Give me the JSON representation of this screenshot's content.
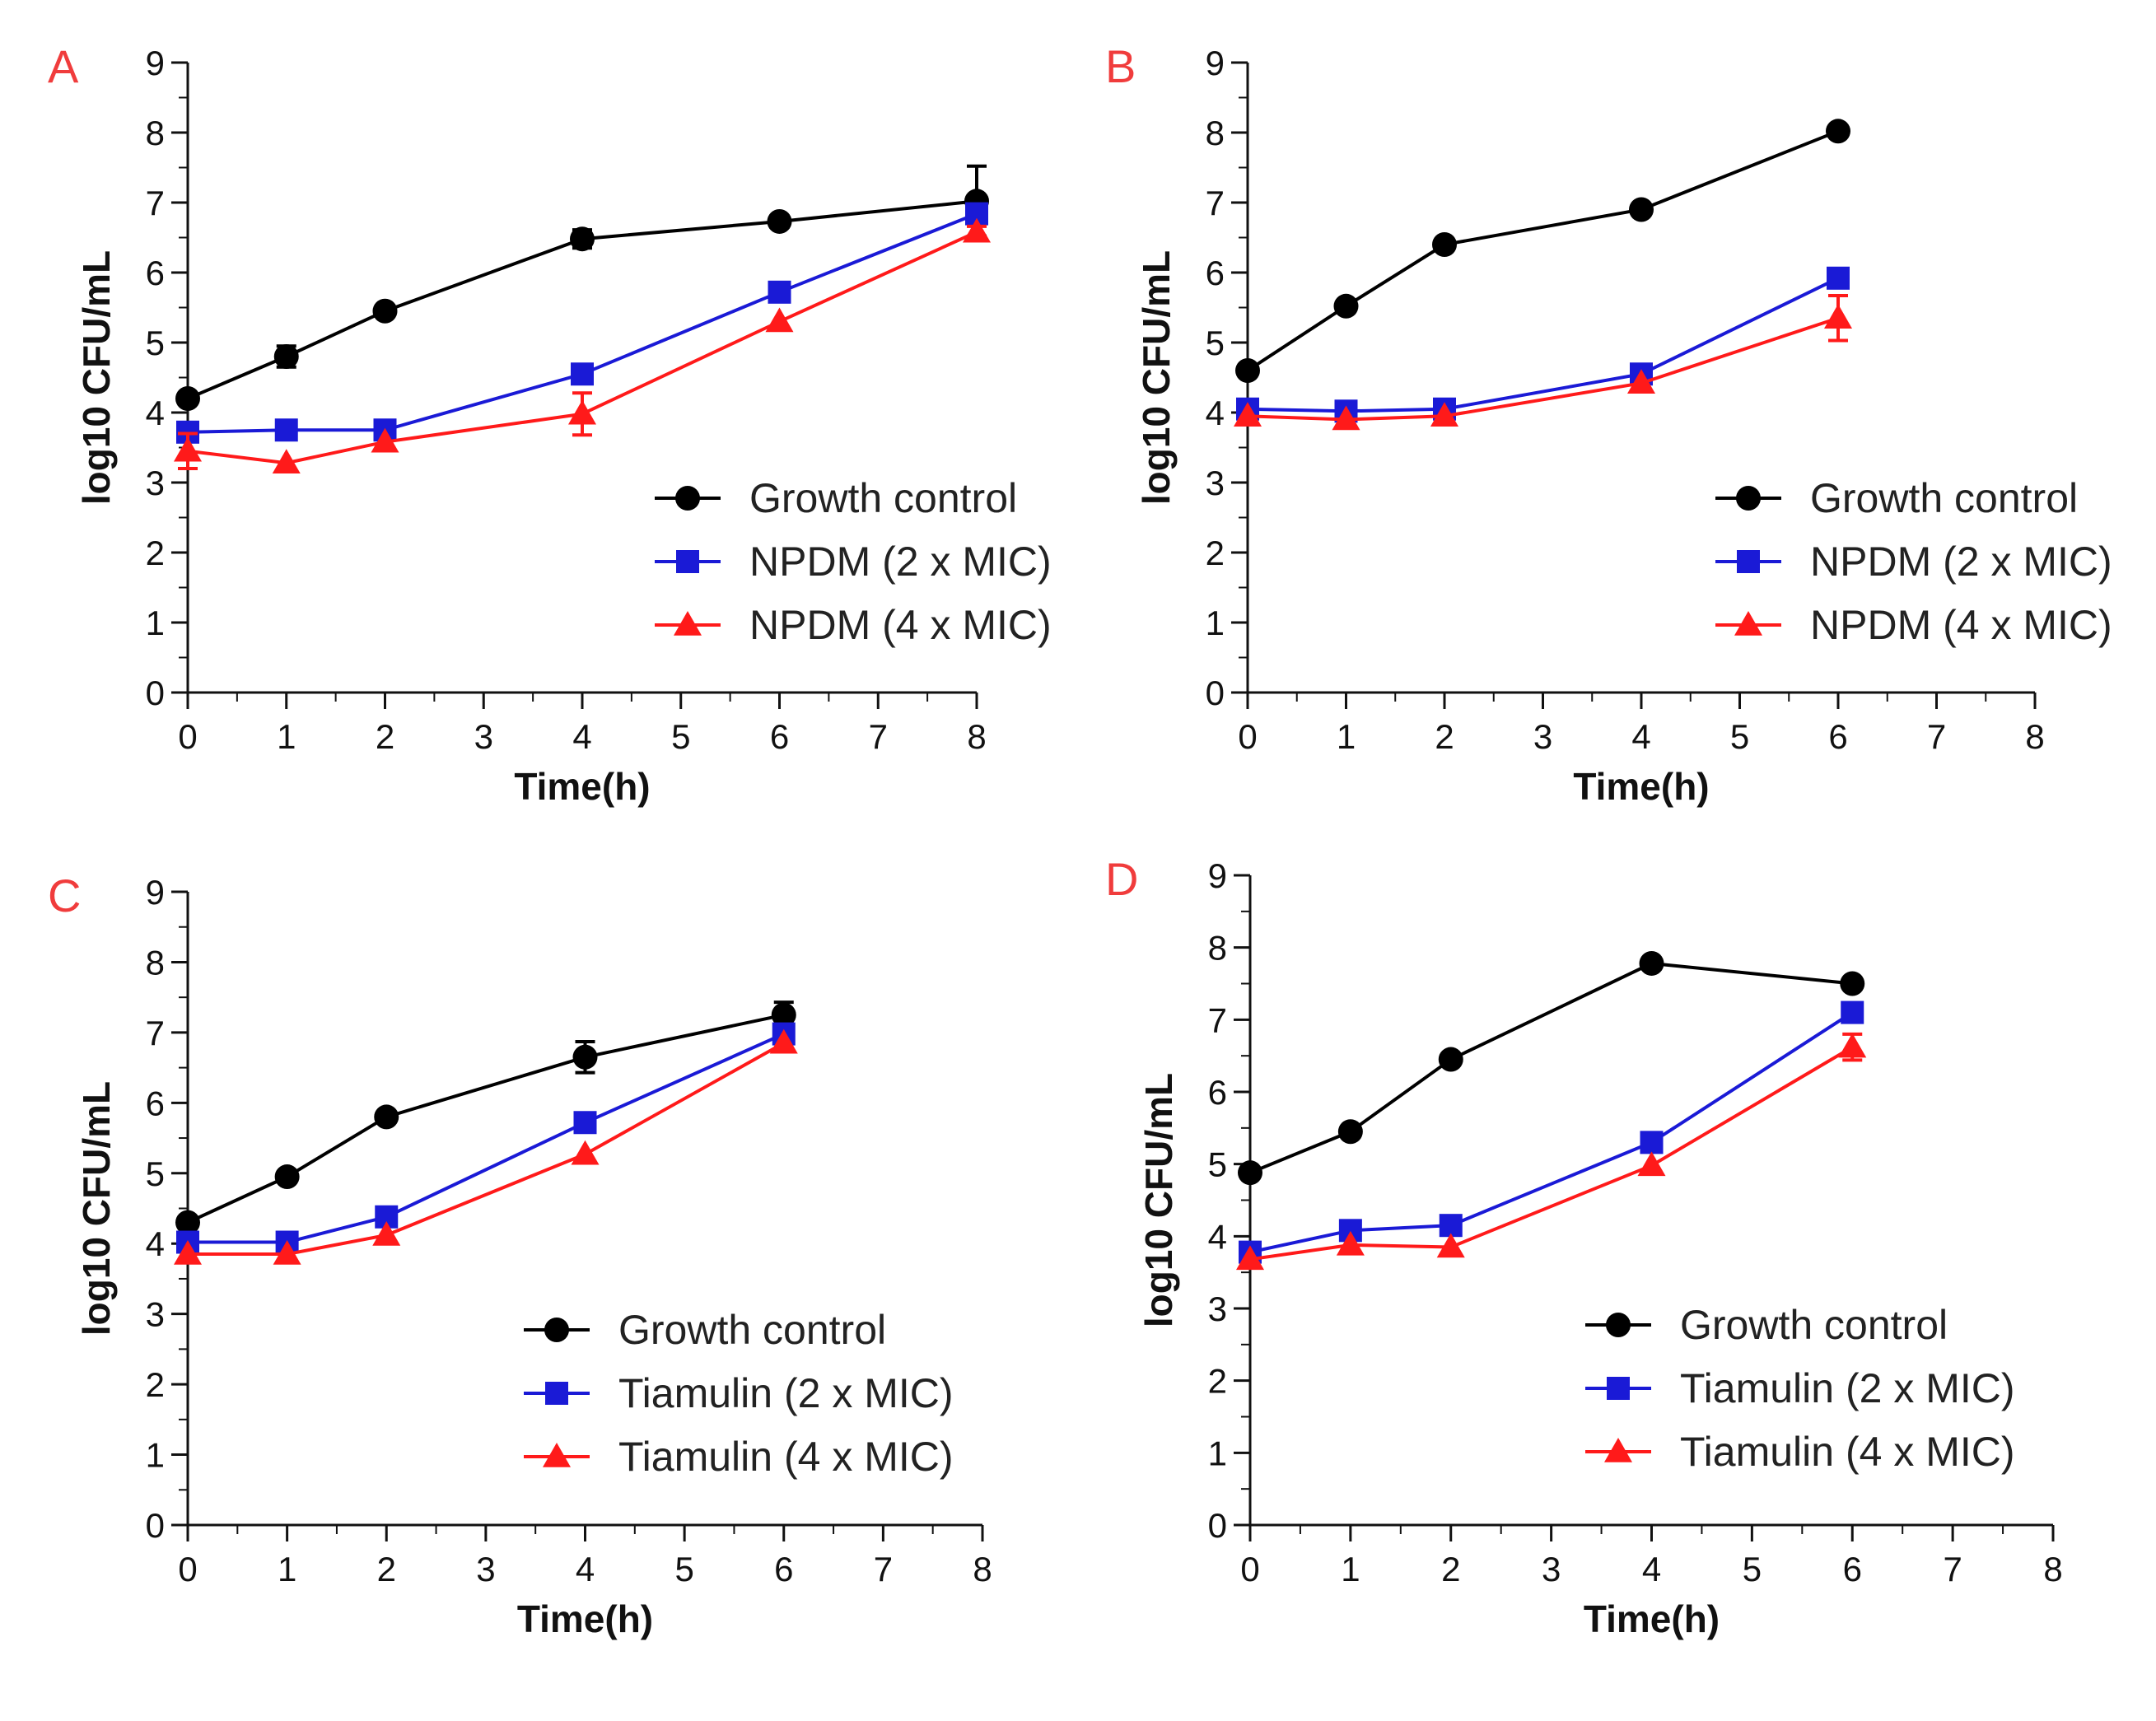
{
  "colors": {
    "growth_control": "#000000",
    "two_mic": "#1a1ad6",
    "four_mic": "#ff1a1a",
    "panel_letter": "#f03c3c"
  },
  "chart_data": [
    {
      "panel": "A",
      "type": "line",
      "xlabel": "Time(h)",
      "ylabel": "log10 CFU/mL",
      "xlim": [
        0,
        8
      ],
      "ylim": [
        0,
        9
      ],
      "xticks": [
        "0",
        "1",
        "2",
        "3",
        "4",
        "5",
        "6",
        "7",
        "8"
      ],
      "yticks": [
        "0",
        "1",
        "2",
        "3",
        "4",
        "5",
        "6",
        "7",
        "8",
        "9"
      ],
      "series": [
        {
          "name": "Growth control",
          "marker": "circle",
          "color": "#000000",
          "x": [
            0,
            1,
            2,
            4,
            6,
            8
          ],
          "y": [
            4.2,
            4.8,
            5.45,
            6.48,
            6.73,
            7.02
          ],
          "err": [
            0,
            0.15,
            0,
            0.13,
            0,
            0.5
          ]
        },
        {
          "name": "NPDM (2 x MIC)",
          "marker": "square",
          "color": "#1a1ad6",
          "x": [
            0,
            1,
            2,
            4,
            6,
            8
          ],
          "y": [
            3.72,
            3.75,
            3.75,
            4.55,
            5.72,
            6.84
          ],
          "err": [
            0,
            0,
            0,
            0,
            0,
            0
          ]
        },
        {
          "name": "NPDM (4 x MIC)",
          "marker": "triangle",
          "color": "#ff1a1a",
          "x": [
            0,
            1,
            2,
            4,
            6,
            8
          ],
          "y": [
            3.45,
            3.28,
            3.58,
            3.98,
            5.3,
            6.58
          ],
          "err": [
            0.25,
            0,
            0,
            0.3,
            0,
            0.08
          ]
        }
      ]
    },
    {
      "panel": "B",
      "type": "line",
      "xlabel": "Time(h)",
      "ylabel": "log10 CFU/mL",
      "xlim": [
        0,
        8
      ],
      "ylim": [
        0,
        9
      ],
      "xticks": [
        "0",
        "1",
        "2",
        "3",
        "4",
        "5",
        "6",
        "7",
        "8"
      ],
      "yticks": [
        "0",
        "1",
        "2",
        "3",
        "4",
        "5",
        "6",
        "7",
        "8",
        "9"
      ],
      "series": [
        {
          "name": "Growth control",
          "marker": "circle",
          "color": "#000000",
          "x": [
            0,
            1,
            2,
            4,
            6
          ],
          "y": [
            4.6,
            5.52,
            6.4,
            6.9,
            8.02
          ],
          "err": [
            0,
            0,
            0,
            0,
            0
          ]
        },
        {
          "name": "NPDM (2 x MIC)",
          "marker": "square",
          "color": "#1a1ad6",
          "x": [
            0,
            1,
            2,
            4,
            6
          ],
          "y": [
            4.05,
            4.02,
            4.05,
            4.55,
            5.92
          ],
          "err": [
            0,
            0,
            0,
            0,
            0
          ]
        },
        {
          "name": "NPDM (4 x MIC)",
          "marker": "triangle",
          "color": "#ff1a1a",
          "x": [
            0,
            1,
            2,
            4,
            6
          ],
          "y": [
            3.95,
            3.9,
            3.95,
            4.42,
            5.35
          ],
          "err": [
            0,
            0,
            0,
            0,
            0.32
          ]
        }
      ]
    },
    {
      "panel": "C",
      "type": "line",
      "xlabel": "Time(h)",
      "ylabel": "log10 CFU/mL",
      "xlim": [
        0,
        8
      ],
      "ylim": [
        0,
        9
      ],
      "xticks": [
        "0",
        "1",
        "2",
        "3",
        "4",
        "5",
        "6",
        "7",
        "8"
      ],
      "yticks": [
        "0",
        "1",
        "2",
        "3",
        "4",
        "5",
        "6",
        "7",
        "8",
        "9"
      ],
      "series": [
        {
          "name": "Growth control",
          "marker": "circle",
          "color": "#000000",
          "x": [
            0,
            1,
            2,
            4,
            6
          ],
          "y": [
            4.3,
            4.95,
            5.8,
            6.65,
            7.25
          ],
          "err": [
            0,
            0,
            0,
            0.22,
            0.18
          ]
        },
        {
          "name": "Tiamulin (2 x MIC)",
          "marker": "square",
          "color": "#1a1ad6",
          "x": [
            0,
            1,
            2,
            4,
            6
          ],
          "y": [
            4.02,
            4.02,
            4.38,
            5.72,
            6.98
          ],
          "err": [
            0,
            0,
            0,
            0,
            0
          ]
        },
        {
          "name": "Tiamulin (4 x MIC)",
          "marker": "triangle",
          "color": "#ff1a1a",
          "x": [
            0,
            1,
            2,
            4,
            6
          ],
          "y": [
            3.85,
            3.85,
            4.12,
            5.27,
            6.85
          ],
          "err": [
            0,
            0,
            0,
            0,
            0
          ]
        }
      ]
    },
    {
      "panel": "D",
      "type": "line",
      "xlabel": "Time(h)",
      "ylabel": "log10 CFU/mL",
      "xlim": [
        0,
        8
      ],
      "ylim": [
        0,
        9
      ],
      "xticks": [
        "0",
        "1",
        "2",
        "3",
        "4",
        "5",
        "6",
        "7",
        "8"
      ],
      "yticks": [
        "0",
        "1",
        "2",
        "3",
        "4",
        "5",
        "6",
        "7",
        "8",
        "9"
      ],
      "series": [
        {
          "name": "Growth control",
          "marker": "circle",
          "color": "#000000",
          "x": [
            0,
            1,
            2,
            4,
            6
          ],
          "y": [
            4.88,
            5.45,
            6.45,
            7.78,
            7.5
          ],
          "err": [
            0,
            0,
            0,
            0,
            0
          ]
        },
        {
          "name": "Tiamulin (2 x MIC)",
          "marker": "square",
          "color": "#1a1ad6",
          "x": [
            0,
            1,
            2,
            4,
            6
          ],
          "y": [
            3.78,
            4.08,
            4.15,
            5.3,
            7.1
          ],
          "err": [
            0,
            0,
            0,
            0,
            0
          ]
        },
        {
          "name": "Tiamulin (4 x MIC)",
          "marker": "triangle",
          "color": "#ff1a1a",
          "x": [
            0,
            1,
            2,
            4,
            6
          ],
          "y": [
            3.68,
            3.88,
            3.85,
            4.98,
            6.62
          ],
          "err": [
            0,
            0,
            0,
            0,
            0.18
          ]
        }
      ]
    }
  ]
}
